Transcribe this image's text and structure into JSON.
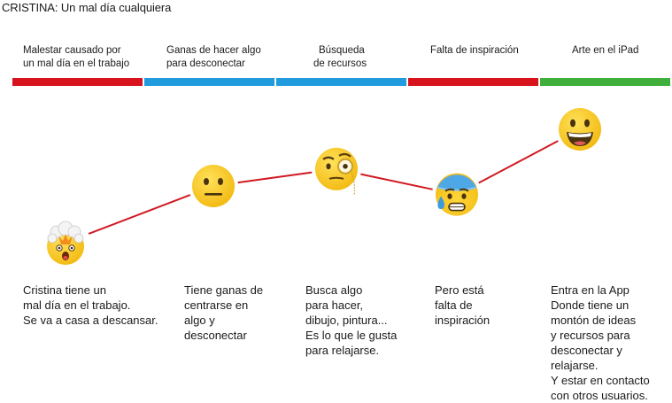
{
  "title": "CRISTINA: Un mal día cualquiera",
  "colors": {
    "red": "#d7141e",
    "blue": "#1f9bde",
    "green": "#3fae3a",
    "line": "#d01a22",
    "emoji_face": "#f7c31d"
  },
  "stages": [
    {
      "label_lines": [
        "Malestar causado por",
        "un mal día en el trabajo"
      ],
      "bar_color": "red",
      "emoji": "exploding-head-emoji",
      "level": 1,
      "description": "Cristina tiene un\nmal día en el trabajo.\nSe va a casa a descansar."
    },
    {
      "label_lines": [
        "Ganas de hacer algo",
        "para desconectar"
      ],
      "bar_color": "blue",
      "emoji": "neutral-face-emoji",
      "level": 3,
      "description": "Tiene ganas de\ncentrarse en\nalgo y\ndesconectar"
    },
    {
      "label_lines": [
        "Búsqueda",
        "de recursos"
      ],
      "bar_color": "blue",
      "emoji": "monocle-face-emoji",
      "level": 3.6,
      "description": "Busca algo\npara hacer,\ndibujo, pintura...\nEs lo que le gusta\npara relajarse."
    },
    {
      "label_lines": [
        "Falta de inspiración"
      ],
      "bar_color": "red",
      "emoji": "anxious-sweat-face-emoji",
      "level": 2.7,
      "description": "Pero está\nfalta de\ninspiración"
    },
    {
      "label_lines": [
        "Arte en el iPad"
      ],
      "bar_color": "green",
      "emoji": "grinning-face-emoji",
      "level": 5,
      "description": "Entra en la App\nDonde tiene un\nmontón de ideas\ny recursos para\ndesconectar y\nrelajarse.\nY estar en contacto\ncon otros usuarios."
    }
  ]
}
